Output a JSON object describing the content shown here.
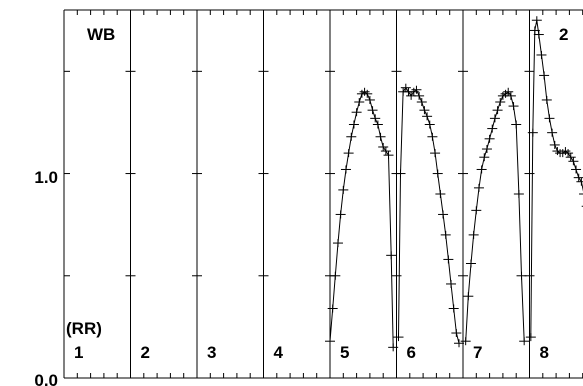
{
  "chart_data": {
    "type": "line",
    "title": "",
    "xlabel": "",
    "ylabel": "",
    "corner_label": "WB",
    "panel_axis_label": "(RR)",
    "panel_number_top_right": "2",
    "ylim": [
      0.0,
      1.8
    ],
    "y_tick_labels": [
      {
        "value": 1.0,
        "label": "1.0"
      },
      {
        "value": 0.0,
        "label": "0.0"
      }
    ],
    "y_minor_ticks": [
      0.5,
      1.0,
      1.5
    ],
    "panels": [
      {
        "label": "1",
        "points": []
      },
      {
        "label": "2",
        "points": []
      },
      {
        "label": "3",
        "points": []
      },
      {
        "label": "4",
        "points": []
      },
      {
        "label": "5",
        "points": [
          [
            0.0,
            0.18
          ],
          [
            0.04,
            0.34
          ],
          [
            0.08,
            0.5
          ],
          [
            0.12,
            0.66
          ],
          [
            0.16,
            0.8
          ],
          [
            0.2,
            0.92
          ],
          [
            0.24,
            1.02
          ],
          [
            0.28,
            1.1
          ],
          [
            0.32,
            1.18
          ],
          [
            0.36,
            1.24
          ],
          [
            0.4,
            1.3
          ],
          [
            0.44,
            1.35
          ],
          [
            0.48,
            1.39
          ],
          [
            0.52,
            1.4
          ],
          [
            0.56,
            1.39
          ],
          [
            0.6,
            1.36
          ],
          [
            0.64,
            1.31
          ],
          [
            0.68,
            1.27
          ],
          [
            0.72,
            1.24
          ],
          [
            0.76,
            1.18
          ],
          [
            0.8,
            1.13
          ],
          [
            0.84,
            1.11
          ],
          [
            0.88,
            1.09
          ],
          [
            0.92,
            0.6
          ],
          [
            0.95,
            0.15
          ]
        ]
      },
      {
        "label": "6",
        "points": [
          [
            0.03,
            0.2
          ],
          [
            0.06,
            1.0
          ],
          [
            0.1,
            1.4
          ],
          [
            0.14,
            1.42
          ],
          [
            0.18,
            1.4
          ],
          [
            0.22,
            1.38
          ],
          [
            0.26,
            1.4
          ],
          [
            0.3,
            1.41
          ],
          [
            0.34,
            1.38
          ],
          [
            0.38,
            1.35
          ],
          [
            0.42,
            1.31
          ],
          [
            0.46,
            1.28
          ],
          [
            0.5,
            1.24
          ],
          [
            0.54,
            1.18
          ],
          [
            0.58,
            1.1
          ],
          [
            0.62,
            1.0
          ],
          [
            0.66,
            0.9
          ],
          [
            0.7,
            0.8
          ],
          [
            0.74,
            0.7
          ],
          [
            0.78,
            0.58
          ],
          [
            0.82,
            0.46
          ],
          [
            0.86,
            0.34
          ],
          [
            0.9,
            0.22
          ],
          [
            0.94,
            0.17
          ]
        ]
      },
      {
        "label": "7",
        "points": [
          [
            0.04,
            0.18
          ],
          [
            0.08,
            0.4
          ],
          [
            0.12,
            0.56
          ],
          [
            0.16,
            0.7
          ],
          [
            0.2,
            0.82
          ],
          [
            0.24,
            0.93
          ],
          [
            0.28,
            1.02
          ],
          [
            0.32,
            1.08
          ],
          [
            0.36,
            1.12
          ],
          [
            0.4,
            1.17
          ],
          [
            0.44,
            1.22
          ],
          [
            0.48,
            1.27
          ],
          [
            0.52,
            1.31
          ],
          [
            0.56,
            1.35
          ],
          [
            0.6,
            1.38
          ],
          [
            0.64,
            1.39
          ],
          [
            0.68,
            1.4
          ],
          [
            0.72,
            1.38
          ],
          [
            0.76,
            1.33
          ],
          [
            0.8,
            1.24
          ],
          [
            0.84,
            0.9
          ],
          [
            0.88,
            0.5
          ],
          [
            0.92,
            0.18
          ]
        ]
      },
      {
        "label": "8",
        "points": [
          [
            0.02,
            0.2
          ],
          [
            0.05,
            1.2
          ],
          [
            0.08,
            1.7
          ],
          [
            0.11,
            1.75
          ],
          [
            0.14,
            1.68
          ],
          [
            0.18,
            1.58
          ],
          [
            0.22,
            1.48
          ],
          [
            0.26,
            1.36
          ],
          [
            0.3,
            1.27
          ],
          [
            0.34,
            1.2
          ],
          [
            0.38,
            1.14
          ],
          [
            0.42,
            1.11
          ],
          [
            0.46,
            1.1
          ],
          [
            0.5,
            1.1
          ],
          [
            0.54,
            1.11
          ],
          [
            0.58,
            1.1
          ],
          [
            0.62,
            1.08
          ],
          [
            0.66,
            1.06
          ],
          [
            0.7,
            1.02
          ],
          [
            0.74,
            0.98
          ],
          [
            0.78,
            0.96
          ],
          [
            0.82,
            0.9
          ],
          [
            0.86,
            0.84
          ]
        ]
      }
    ]
  }
}
